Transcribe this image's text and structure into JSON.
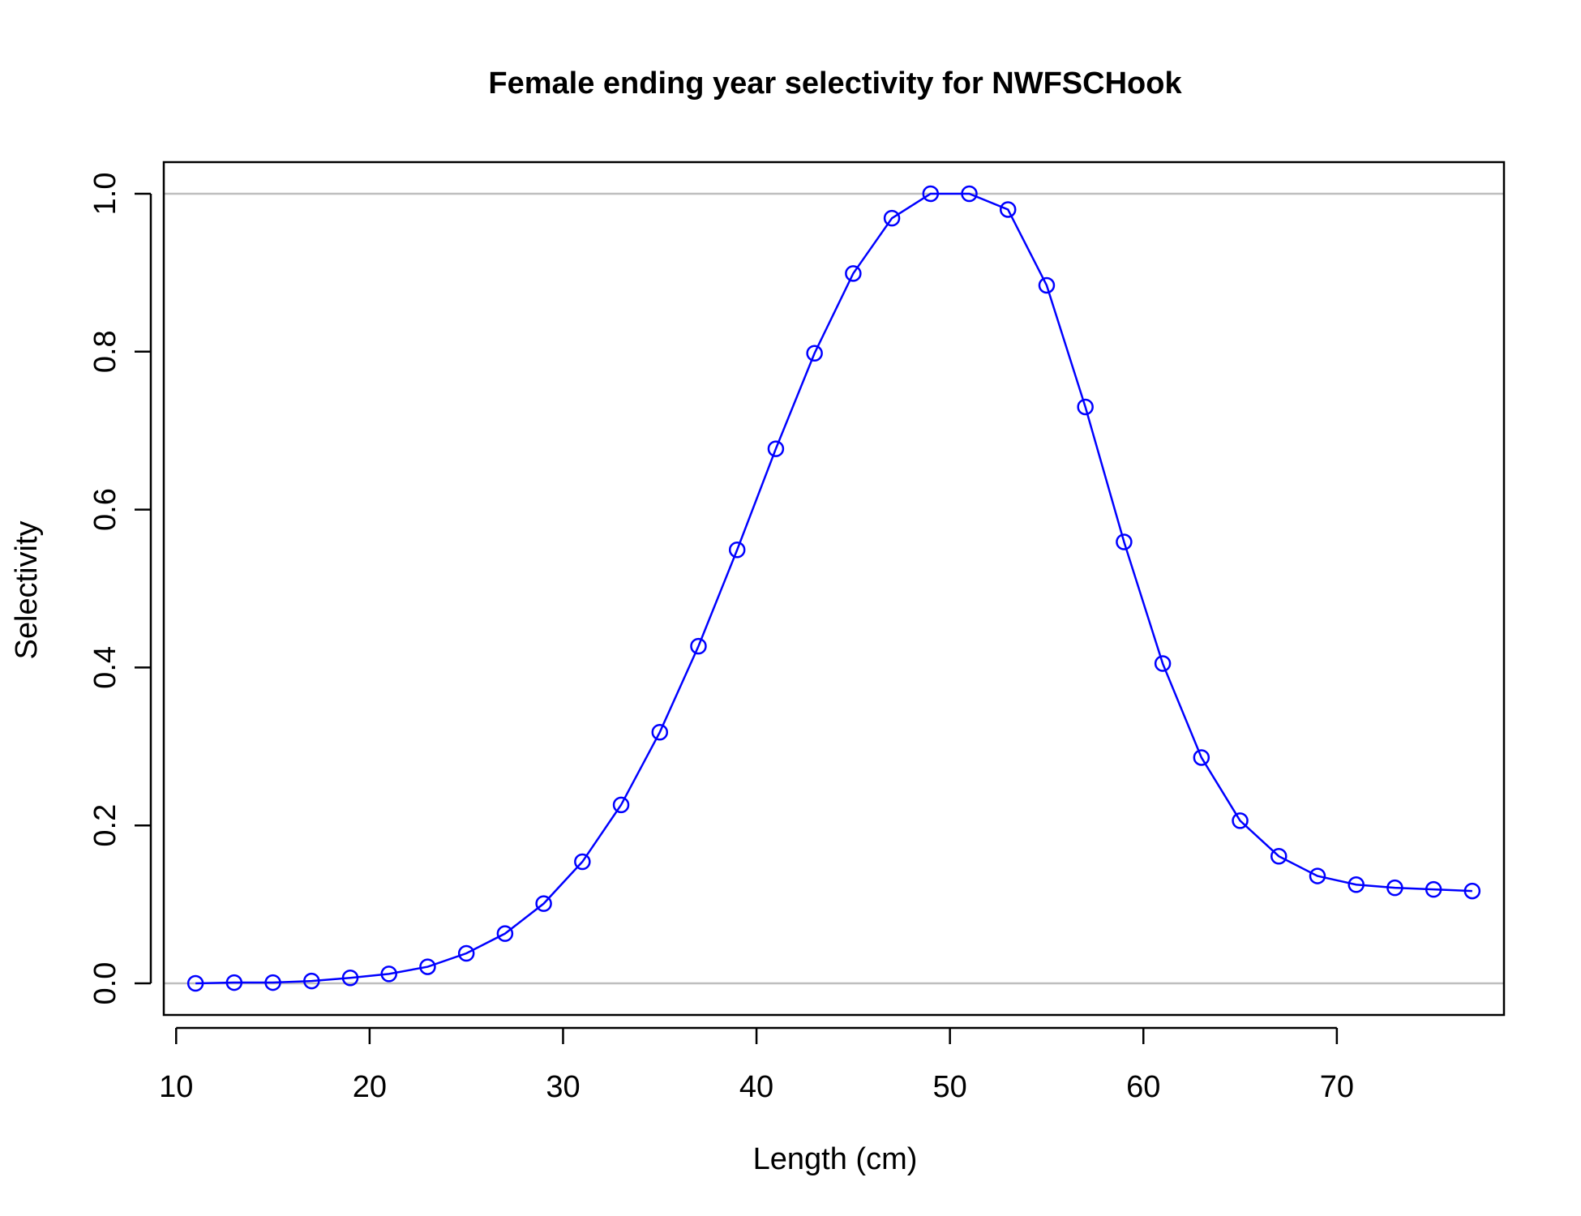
{
  "chart_data": {
    "type": "line",
    "title": "Female ending year selectivity for NWFSCHook",
    "xlabel": "Length (cm)",
    "ylabel": "Selectivity",
    "xlim": [
      9.36,
      78.64
    ],
    "ylim": [
      -0.04,
      1.04
    ],
    "xticks": [
      10,
      20,
      30,
      40,
      50,
      60,
      70
    ],
    "yticks": [
      0.0,
      0.2,
      0.4,
      0.6,
      0.8,
      1.0
    ],
    "xtick_labels": [
      "10",
      "20",
      "30",
      "40",
      "50",
      "60",
      "70"
    ],
    "ytick_labels": [
      "0.0",
      "0.2",
      "0.4",
      "0.6",
      "0.8",
      "1.0"
    ],
    "reference_lines": [
      0,
      1
    ],
    "reference_line_color": "#bebebe",
    "grid": false,
    "markers": "open-circle",
    "series": [
      {
        "color": "#0000ff",
        "x": [
          11,
          13,
          15,
          17,
          19,
          21,
          23,
          25,
          27,
          29,
          31,
          33,
          35,
          37,
          39,
          41,
          43,
          45,
          47,
          49,
          51,
          53,
          55,
          57,
          59,
          61,
          63,
          65,
          67,
          69,
          71,
          73,
          75,
          77
        ],
        "y": [
          0.0,
          0.001,
          0.001,
          0.003,
          0.007,
          0.012,
          0.021,
          0.038,
          0.063,
          0.101,
          0.154,
          0.226,
          0.318,
          0.427,
          0.549,
          0.677,
          0.798,
          0.899,
          0.969,
          1.0,
          1.0,
          0.98,
          0.884,
          0.73,
          0.559,
          0.405,
          0.286,
          0.206,
          0.161,
          0.136,
          0.125,
          0.121,
          0.119,
          0.117
        ]
      }
    ]
  }
}
